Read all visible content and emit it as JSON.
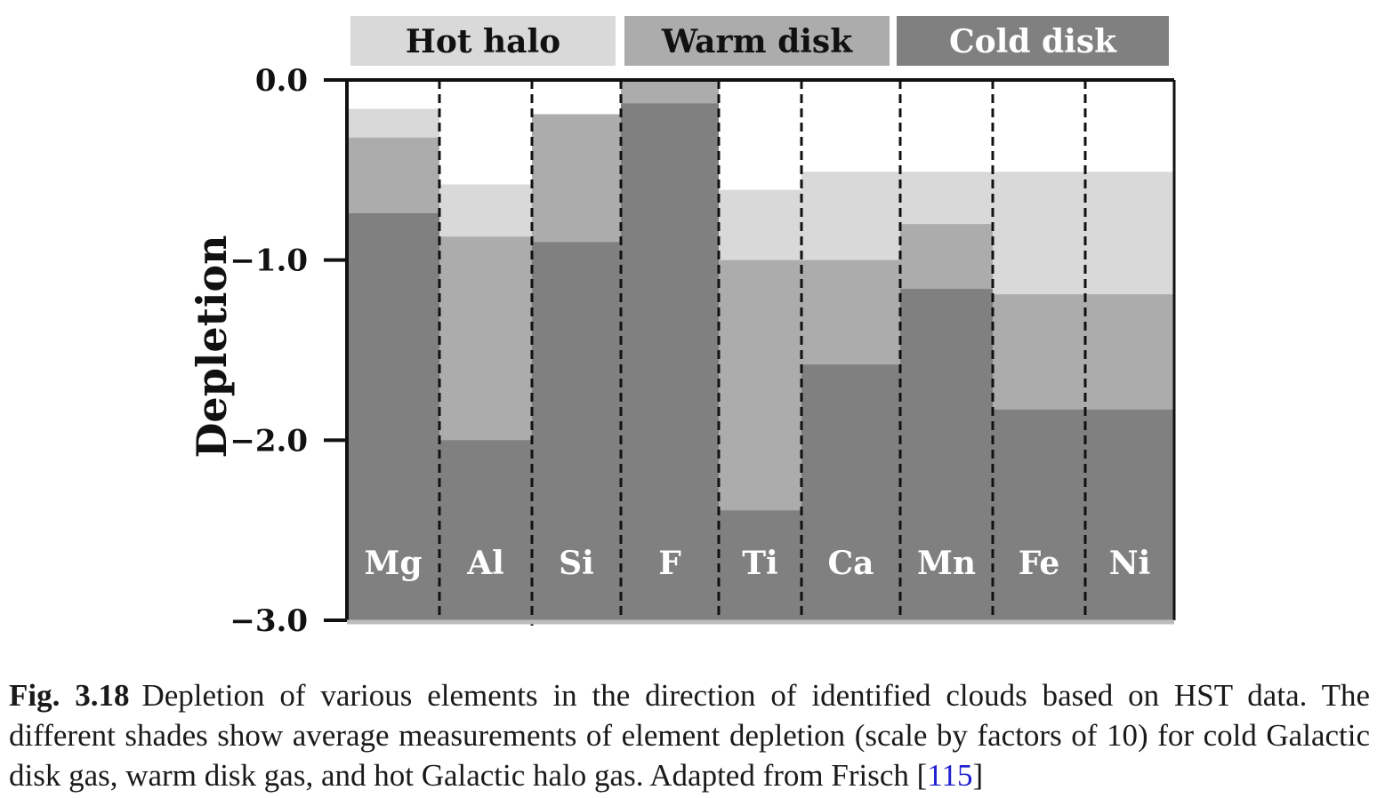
{
  "chart_data": {
    "type": "bar",
    "subtype": "stacked-overlay",
    "title": "",
    "xlabel": "",
    "ylabel": "Depletion",
    "ylim": [
      -3.0,
      0.0
    ],
    "yticks": [
      0.0,
      -1.0,
      -2.0,
      -3.0
    ],
    "ytick_labels": [
      "0.0",
      "−1.0",
      "−2.0",
      "−3.0"
    ],
    "categories": [
      "Mg",
      "Al",
      "Si",
      "F",
      "Ti",
      "Ca",
      "Mn",
      "Fe",
      "Ni"
    ],
    "series": [
      {
        "name": "Hot halo",
        "color": "#d9d9d9",
        "text_color": "#111111",
        "values": [
          -0.16,
          -0.58,
          -0.19,
          null,
          -0.61,
          -0.51,
          -0.51,
          -0.51,
          -0.51
        ]
      },
      {
        "name": "Warm disk",
        "color": "#acacac",
        "text_color": "#111111",
        "values": [
          -0.32,
          -0.87,
          -0.19,
          0.0,
          -1.0,
          -1.0,
          -0.8,
          -1.19,
          -1.19
        ]
      },
      {
        "name": "Cold disk",
        "color": "#808080",
        "text_color": "#ffffff",
        "values": [
          -0.74,
          -2.0,
          -0.9,
          -0.13,
          -2.39,
          -1.58,
          -1.16,
          -1.83,
          -1.83
        ]
      }
    ],
    "legend_position": "top",
    "grid": false
  },
  "caption": {
    "label": "Fig. 3.18",
    "text": "Depletion of various elements in the direction of identified clouds based on HST data. The different shades show average measurements of element depletion (scale by factors of 10) for cold Galactic disk gas, warm disk gas, and hot Galactic halo gas. Adapted from Frisch [",
    "ref": "115",
    "end": "]"
  }
}
